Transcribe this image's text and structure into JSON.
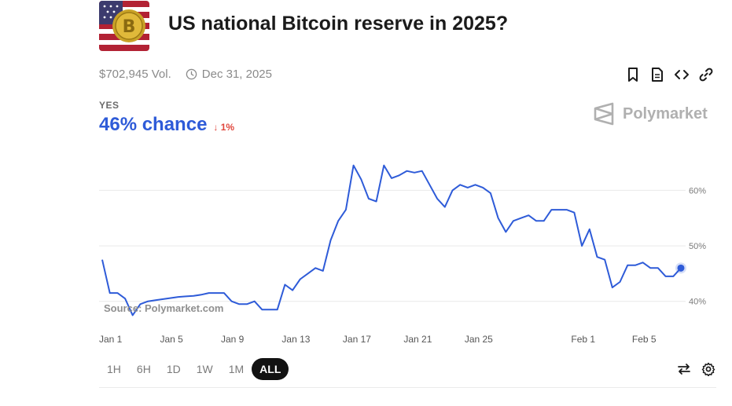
{
  "market": {
    "title": "US national Bitcoin reserve in 2025?",
    "volume": "$702,945 Vol.",
    "end_date": "Dec 31, 2025",
    "outcome_label": "YES",
    "chance_text": "46% chance",
    "delta_text": "↓ 1%",
    "brand": "Polymarket",
    "source": "Source: Polymarket.com"
  },
  "actions": [
    "bookmark-icon",
    "document-icon",
    "embed-icon",
    "link-icon"
  ],
  "time_ranges": [
    {
      "label": "1H",
      "active": false
    },
    {
      "label": "6H",
      "active": false
    },
    {
      "label": "1D",
      "active": false
    },
    {
      "label": "1W",
      "active": false
    },
    {
      "label": "1M",
      "active": false
    },
    {
      "label": "ALL",
      "active": true
    }
  ],
  "tools": [
    "swap-icon",
    "gear-icon"
  ],
  "colors": {
    "line": "#2e5bd8",
    "accent": "#2e5bd8",
    "negative": "#e0463c",
    "grid": "#e9e9e9"
  },
  "chart_data": {
    "type": "line",
    "title": "",
    "xlabel": "",
    "ylabel": "",
    "x_tick_labels": [
      "Jan 1",
      "Jan 5",
      "Jan 9",
      "Jan 13",
      "Jan 17",
      "Jan 21",
      "Jan 25",
      "Feb 1",
      "Feb 5"
    ],
    "y_tick_labels": [
      "40%",
      "50%",
      "60%"
    ],
    "y_ticks": [
      40,
      50,
      60
    ],
    "ylim": [
      36,
      66
    ],
    "grid": true,
    "x_unit": "days since Jan 1 2025",
    "series": [
      {
        "name": "Yes",
        "points": [
          [
            0.0,
            47.5
          ],
          [
            0.5,
            41.5
          ],
          [
            1.0,
            41.5
          ],
          [
            1.5,
            40.5
          ],
          [
            2.0,
            37.5
          ],
          [
            2.5,
            39.5
          ],
          [
            3.0,
            40.0
          ],
          [
            3.5,
            40.2
          ],
          [
            4.0,
            40.4
          ],
          [
            4.5,
            40.6
          ],
          [
            5.0,
            40.8
          ],
          [
            5.5,
            40.9
          ],
          [
            6.0,
            41.0
          ],
          [
            6.5,
            41.2
          ],
          [
            7.0,
            41.5
          ],
          [
            7.5,
            41.5
          ],
          [
            8.0,
            41.5
          ],
          [
            8.5,
            40.0
          ],
          [
            9.0,
            39.5
          ],
          [
            9.5,
            39.5
          ],
          [
            10.0,
            40.0
          ],
          [
            10.5,
            38.5
          ],
          [
            11.0,
            38.5
          ],
          [
            11.5,
            38.5
          ],
          [
            12.0,
            43.0
          ],
          [
            12.5,
            42.0
          ],
          [
            13.0,
            44.0
          ],
          [
            13.5,
            45.0
          ],
          [
            14.0,
            46.0
          ],
          [
            14.5,
            45.5
          ],
          [
            15.0,
            51.0
          ],
          [
            15.5,
            54.5
          ],
          [
            16.0,
            56.5
          ],
          [
            16.5,
            64.5
          ],
          [
            17.0,
            62.0
          ],
          [
            17.5,
            58.5
          ],
          [
            18.0,
            58.0
          ],
          [
            18.5,
            64.5
          ],
          [
            19.0,
            62.2
          ],
          [
            19.5,
            62.7
          ],
          [
            20.0,
            63.5
          ],
          [
            20.5,
            63.2
          ],
          [
            21.0,
            63.5
          ],
          [
            21.5,
            61.0
          ],
          [
            22.0,
            58.5
          ],
          [
            22.5,
            57.0
          ],
          [
            23.0,
            60.0
          ],
          [
            23.5,
            61.0
          ],
          [
            24.0,
            60.5
          ],
          [
            24.5,
            61.0
          ],
          [
            25.0,
            60.5
          ],
          [
            25.5,
            59.5
          ],
          [
            26.0,
            55.0
          ],
          [
            26.5,
            52.5
          ],
          [
            27.0,
            54.5
          ],
          [
            27.5,
            55.0
          ],
          [
            28.0,
            55.5
          ],
          [
            28.5,
            54.5
          ],
          [
            29.0,
            54.5
          ],
          [
            29.5,
            56.5
          ],
          [
            30.0,
            56.5
          ],
          [
            30.5,
            56.5
          ],
          [
            31.0,
            56.0
          ],
          [
            31.5,
            50.0
          ],
          [
            32.0,
            53.0
          ],
          [
            32.5,
            48.0
          ],
          [
            33.0,
            47.5
          ],
          [
            33.5,
            42.5
          ],
          [
            34.0,
            43.5
          ],
          [
            34.5,
            46.5
          ],
          [
            35.0,
            46.5
          ],
          [
            35.5,
            47.0
          ],
          [
            36.0,
            46.0
          ],
          [
            36.5,
            46.0
          ],
          [
            37.0,
            44.5
          ],
          [
            37.5,
            44.5
          ],
          [
            38.0,
            46.0
          ]
        ]
      }
    ]
  }
}
